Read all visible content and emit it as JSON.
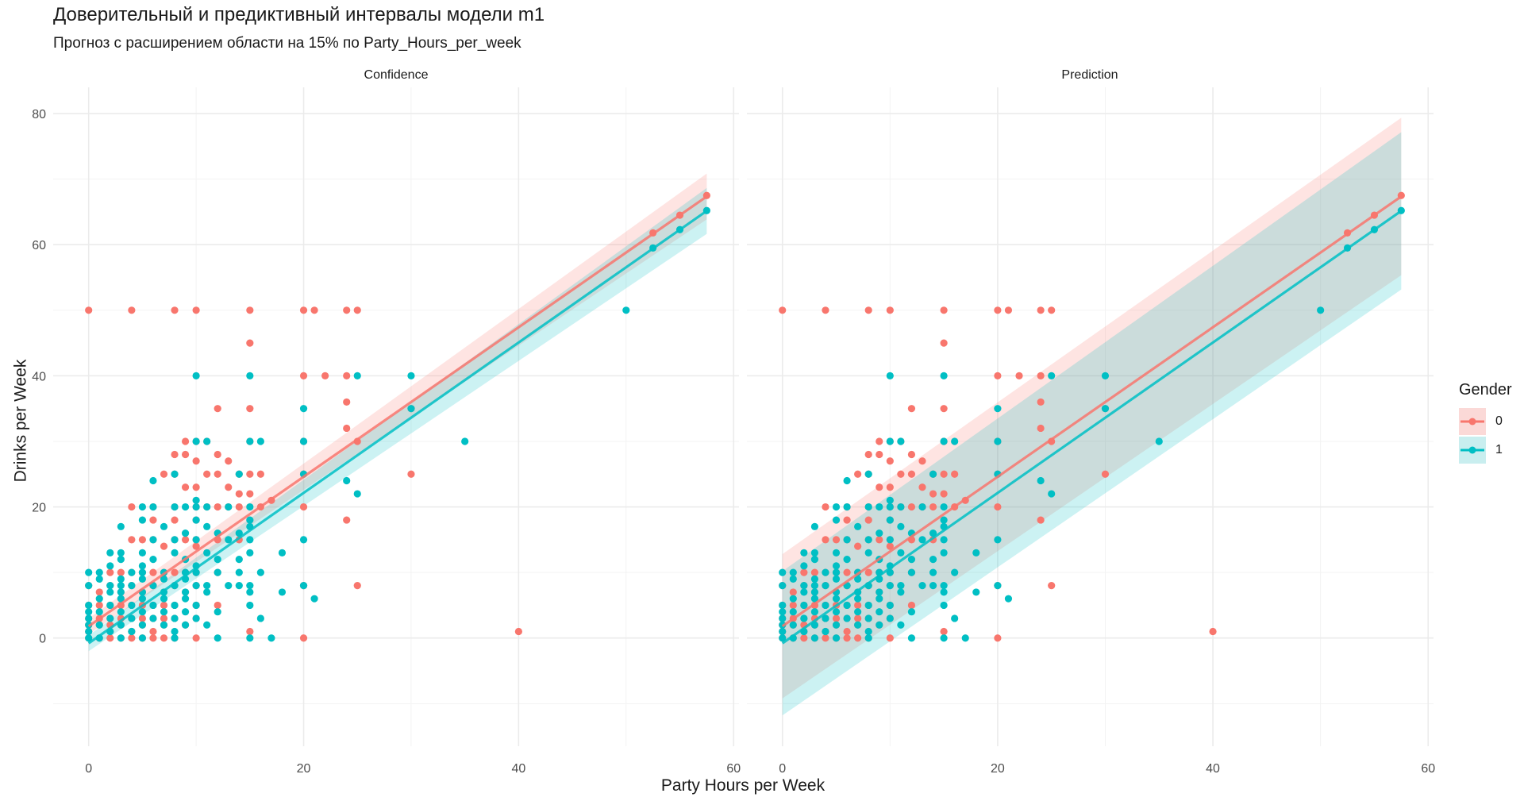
{
  "title": "Доверительный и предиктивный интервалы модели m1",
  "subtitle": "Прогноз с расширением области на 15% по Party_Hours_per_week",
  "xlabel": "Party Hours per Week",
  "ylabel": "Drinks per Week",
  "legend": {
    "title": "Gender",
    "items": [
      {
        "label": "0",
        "color": "#F8766D",
        "fill": "#FBD9D7"
      },
      {
        "label": "1",
        "color": "#00BFC4",
        "fill": "#C9EEEF"
      }
    ]
  },
  "colors": {
    "gender_0": "#F8766D",
    "gender_1": "#00BFC4",
    "line_overlap_0": "#C7817D",
    "grid": "#EBEBEB"
  },
  "chart_data": {
    "type": "scatter",
    "xlim": [
      -3.3,
      60.5
    ],
    "ylim": [
      -16.5,
      84
    ],
    "x_ticks": [
      0,
      20,
      40,
      60
    ],
    "y_ticks": [
      0,
      20,
      40,
      60,
      80
    ],
    "grid": true,
    "legend_position": "right",
    "panels": [
      {
        "name": "Confidence",
        "interval": "confidence",
        "half_width_at_0": 1.2,
        "half_width_at_57": 3.5
      },
      {
        "name": "Prediction",
        "interval": "prediction",
        "half_width_at_0": 11.0,
        "half_width_at_57": 12.0
      }
    ],
    "fit": {
      "x_range": [
        0,
        57.5
      ],
      "series": [
        {
          "name": "0",
          "intercept": 1.8,
          "slope": 1.14
        },
        {
          "name": "1",
          "intercept": -0.8,
          "slope": 1.147
        }
      ]
    },
    "extension_points": [
      {
        "series": "0",
        "x": [
          52.5,
          55,
          57.5
        ],
        "y": [
          61.8,
          64.5,
          67.5
        ]
      },
      {
        "series": "1",
        "x": [
          52.5,
          55,
          57.5
        ],
        "y": [
          59.5,
          62.3,
          65.2
        ]
      }
    ],
    "points": {
      "0": [
        [
          0,
          50
        ],
        [
          4,
          50
        ],
        [
          8,
          50
        ],
        [
          10,
          50
        ],
        [
          15,
          50
        ],
        [
          20,
          50
        ],
        [
          21,
          50
        ],
        [
          24,
          50
        ],
        [
          25,
          50
        ],
        [
          15,
          45
        ],
        [
          20,
          40
        ],
        [
          22,
          40
        ],
        [
          15,
          35
        ],
        [
          12,
          35
        ],
        [
          24,
          36
        ],
        [
          24,
          32
        ],
        [
          30,
          35
        ],
        [
          25,
          30
        ],
        [
          9,
          30
        ],
        [
          10,
          30
        ],
        [
          11,
          30
        ],
        [
          12,
          28
        ],
        [
          8,
          28
        ],
        [
          9,
          28
        ],
        [
          10,
          27
        ],
        [
          13,
          27
        ],
        [
          7,
          25
        ],
        [
          8,
          25
        ],
        [
          12,
          25
        ],
        [
          14,
          25
        ],
        [
          15,
          25
        ],
        [
          16,
          25
        ],
        [
          11,
          25
        ],
        [
          10,
          23
        ],
        [
          13,
          23
        ],
        [
          9,
          23
        ],
        [
          14,
          22
        ],
        [
          15,
          22
        ],
        [
          17,
          21
        ],
        [
          4,
          20
        ],
        [
          6,
          20
        ],
        [
          8,
          20
        ],
        [
          10,
          20
        ],
        [
          11,
          20
        ],
        [
          12,
          20
        ],
        [
          13,
          20
        ],
        [
          14,
          20
        ],
        [
          16,
          20
        ],
        [
          20,
          20
        ],
        [
          24,
          18
        ],
        [
          6,
          18
        ],
        [
          8,
          18
        ],
        [
          10,
          18
        ],
        [
          4,
          15
        ],
        [
          5,
          15
        ],
        [
          6,
          15
        ],
        [
          8,
          15
        ],
        [
          9,
          15
        ],
        [
          10,
          15
        ],
        [
          12,
          15
        ],
        [
          14,
          15
        ],
        [
          7,
          14
        ],
        [
          10,
          14
        ],
        [
          2,
          10
        ],
        [
          3,
          10
        ],
        [
          4,
          10
        ],
        [
          5,
          10
        ],
        [
          6,
          10
        ],
        [
          7,
          10
        ],
        [
          8,
          10
        ],
        [
          9,
          10
        ],
        [
          10,
          10
        ],
        [
          12,
          10
        ],
        [
          0,
          8
        ],
        [
          2,
          8
        ],
        [
          4,
          8
        ],
        [
          6,
          8
        ],
        [
          8,
          8
        ],
        [
          10,
          8
        ],
        [
          20,
          8
        ],
        [
          25,
          8
        ],
        [
          1,
          7
        ],
        [
          3,
          7
        ],
        [
          5,
          7
        ],
        [
          7,
          7
        ],
        [
          9,
          7
        ],
        [
          0,
          5
        ],
        [
          1,
          5
        ],
        [
          2,
          5
        ],
        [
          3,
          5
        ],
        [
          4,
          5
        ],
        [
          5,
          5
        ],
        [
          6,
          5
        ],
        [
          7,
          5
        ],
        [
          8,
          5
        ],
        [
          10,
          5
        ],
        [
          12,
          5
        ],
        [
          0,
          3
        ],
        [
          1,
          3
        ],
        [
          2,
          3
        ],
        [
          3,
          3
        ],
        [
          4,
          3
        ],
        [
          5,
          3
        ],
        [
          6,
          3
        ],
        [
          7,
          3
        ],
        [
          8,
          3
        ],
        [
          10,
          3
        ],
        [
          0,
          2
        ],
        [
          1,
          2
        ],
        [
          2,
          2
        ],
        [
          3,
          2
        ],
        [
          5,
          2
        ],
        [
          7,
          2
        ],
        [
          9,
          2
        ],
        [
          0,
          1
        ],
        [
          2,
          1
        ],
        [
          4,
          1
        ],
        [
          6,
          1
        ],
        [
          15,
          1
        ],
        [
          40,
          1
        ],
        [
          0,
          0
        ],
        [
          1,
          0
        ],
        [
          2,
          0
        ],
        [
          3,
          0
        ],
        [
          4,
          0
        ],
        [
          5,
          0
        ],
        [
          6,
          0
        ],
        [
          7,
          0
        ],
        [
          8,
          0
        ],
        [
          10,
          0
        ],
        [
          20,
          0
        ],
        [
          30,
          25
        ],
        [
          20,
          30
        ],
        [
          15,
          30
        ],
        [
          20,
          25
        ],
        [
          24,
          40
        ]
      ],
      "1": [
        [
          50,
          50
        ],
        [
          10,
          40
        ],
        [
          15,
          40
        ],
        [
          25,
          40
        ],
        [
          30,
          40
        ],
        [
          30,
          35
        ],
        [
          20,
          35
        ],
        [
          35,
          30
        ],
        [
          10,
          30
        ],
        [
          11,
          30
        ],
        [
          16,
          30
        ],
        [
          15,
          30
        ],
        [
          20,
          30
        ],
        [
          8,
          25
        ],
        [
          14,
          25
        ],
        [
          20,
          25
        ],
        [
          6,
          24
        ],
        [
          24,
          24
        ],
        [
          25,
          22
        ],
        [
          10,
          21
        ],
        [
          5,
          20
        ],
        [
          6,
          20
        ],
        [
          8,
          20
        ],
        [
          9,
          20
        ],
        [
          10,
          20
        ],
        [
          11,
          20
        ],
        [
          13,
          20
        ],
        [
          15,
          20
        ],
        [
          5,
          18
        ],
        [
          10,
          18
        ],
        [
          15,
          18
        ],
        [
          3,
          17
        ],
        [
          7,
          17
        ],
        [
          11,
          17
        ],
        [
          15,
          17
        ],
        [
          9,
          16
        ],
        [
          12,
          16
        ],
        [
          14,
          16
        ],
        [
          6,
          15
        ],
        [
          8,
          15
        ],
        [
          10,
          15
        ],
        [
          13,
          15
        ],
        [
          15,
          15
        ],
        [
          20,
          15
        ],
        [
          2,
          13
        ],
        [
          3,
          13
        ],
        [
          5,
          13
        ],
        [
          8,
          13
        ],
        [
          11,
          13
        ],
        [
          15,
          13
        ],
        [
          18,
          13
        ],
        [
          3,
          12
        ],
        [
          6,
          12
        ],
        [
          9,
          12
        ],
        [
          12,
          12
        ],
        [
          14,
          12
        ],
        [
          2,
          11
        ],
        [
          5,
          11
        ],
        [
          10,
          11
        ],
        [
          0,
          10
        ],
        [
          1,
          10
        ],
        [
          4,
          10
        ],
        [
          5,
          10
        ],
        [
          7,
          10
        ],
        [
          9,
          10
        ],
        [
          10,
          10
        ],
        [
          12,
          10
        ],
        [
          14,
          10
        ],
        [
          16,
          10
        ],
        [
          1,
          9
        ],
        [
          3,
          9
        ],
        [
          5,
          9
        ],
        [
          7,
          9
        ],
        [
          9,
          9
        ],
        [
          0,
          8
        ],
        [
          2,
          8
        ],
        [
          3,
          8
        ],
        [
          4,
          8
        ],
        [
          6,
          8
        ],
        [
          8,
          8
        ],
        [
          10,
          8
        ],
        [
          11,
          8
        ],
        [
          13,
          8
        ],
        [
          14,
          8
        ],
        [
          15,
          8
        ],
        [
          20,
          8
        ],
        [
          15,
          7
        ],
        [
          18,
          7
        ],
        [
          2,
          7
        ],
        [
          3,
          7
        ],
        [
          5,
          7
        ],
        [
          7,
          7
        ],
        [
          9,
          7
        ],
        [
          11,
          7
        ],
        [
          1,
          6
        ],
        [
          3,
          6
        ],
        [
          5,
          6
        ],
        [
          7,
          6
        ],
        [
          9,
          6
        ],
        [
          21,
          6
        ],
        [
          0,
          5
        ],
        [
          2,
          5
        ],
        [
          4,
          5
        ],
        [
          6,
          5
        ],
        [
          8,
          5
        ],
        [
          10,
          5
        ],
        [
          15,
          5
        ],
        [
          1,
          4
        ],
        [
          0,
          4
        ],
        [
          3,
          4
        ],
        [
          5,
          4
        ],
        [
          7,
          4
        ],
        [
          9,
          4
        ],
        [
          12,
          4
        ],
        [
          0,
          3
        ],
        [
          2,
          3
        ],
        [
          4,
          3
        ],
        [
          6,
          3
        ],
        [
          8,
          3
        ],
        [
          10,
          3
        ],
        [
          16,
          3
        ],
        [
          0,
          2
        ],
        [
          1,
          2
        ],
        [
          3,
          2
        ],
        [
          5,
          2
        ],
        [
          7,
          2
        ],
        [
          9,
          2
        ],
        [
          11,
          2
        ],
        [
          0,
          1
        ],
        [
          2,
          1
        ],
        [
          4,
          1
        ],
        [
          8,
          1
        ],
        [
          0,
          0
        ],
        [
          1,
          0
        ],
        [
          3,
          0
        ],
        [
          5,
          0
        ],
        [
          8,
          0
        ],
        [
          12,
          0
        ],
        [
          15,
          0
        ],
        [
          17,
          0
        ]
      ]
    }
  }
}
